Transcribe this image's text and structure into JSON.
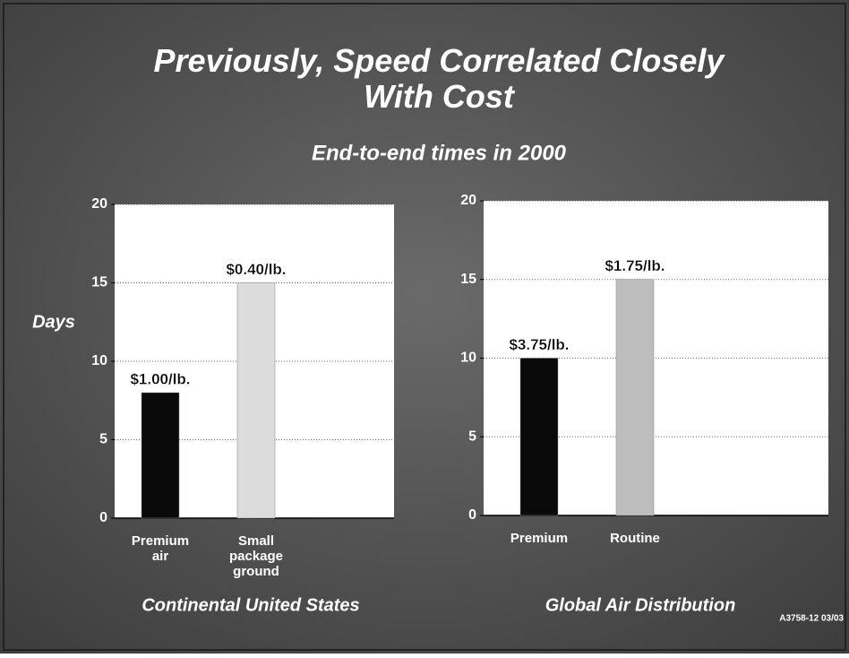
{
  "title": "Previously, Speed Correlated Closely With Cost",
  "subtitle": "End-to-end times in 2000",
  "y_label": "Days",
  "footer": "A3758-12 03/03",
  "chart_data": [
    {
      "type": "bar",
      "caption": "Continental United States",
      "categories": [
        "Premium air",
        "Small package ground"
      ],
      "values": [
        8,
        15
      ],
      "value_labels": [
        "$1.00/lb.",
        "$0.40/lb."
      ],
      "colors": [
        "#0a0a0a",
        "#dcdcdc"
      ],
      "ylim": [
        0,
        20
      ],
      "yticks": [
        0,
        5,
        10,
        15,
        20
      ],
      "grid": true
    },
    {
      "type": "bar",
      "caption": "Global Air Distribution",
      "categories": [
        "Premium",
        "Routine"
      ],
      "values": [
        10,
        15
      ],
      "value_labels": [
        "$3.75/lb.",
        "$1.75/lb."
      ],
      "colors": [
        "#0a0a0a",
        "#bdbdbd"
      ],
      "ylim": [
        0,
        20
      ],
      "yticks": [
        0,
        5,
        10,
        15,
        20
      ],
      "grid": true
    }
  ]
}
